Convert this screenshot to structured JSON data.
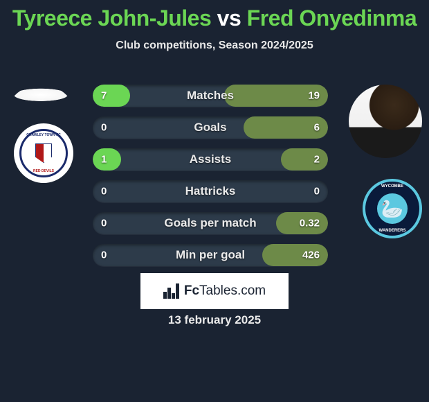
{
  "title": {
    "player1": "Tyreece John-Jules",
    "vs": "vs",
    "player2": "Fred Onyedinma",
    "color1": "#6bd654",
    "color2": "#6bd654",
    "vs_color": "#ffffff",
    "fontsize": 32
  },
  "subtitle": "Club competitions, Season 2024/2025",
  "player1_color": "#6bd654",
  "player2_color": "#6d8a48",
  "stats": [
    {
      "label": "Matches",
      "val1": "7",
      "val2": "19",
      "fill1_pct": 16,
      "fill2_pct": 44
    },
    {
      "label": "Goals",
      "val1": "0",
      "val2": "6",
      "fill1_pct": 0,
      "fill2_pct": 36
    },
    {
      "label": "Assists",
      "val1": "1",
      "val2": "2",
      "fill1_pct": 12,
      "fill2_pct": 20
    },
    {
      "label": "Hattricks",
      "val1": "0",
      "val2": "0",
      "fill1_pct": 0,
      "fill2_pct": 0
    },
    {
      "label": "Goals per match",
      "val1": "0",
      "val2": "0.32",
      "fill1_pct": 0,
      "fill2_pct": 22
    },
    {
      "label": "Min per goal",
      "val1": "0",
      "val2": "426",
      "fill1_pct": 0,
      "fill2_pct": 28
    }
  ],
  "branding": {
    "label_prefix": "Fc",
    "label_mid": "Tables",
    "label_suffix": ".com"
  },
  "date": "13 february 2025",
  "background_color": "#1a2332",
  "bar_bg": "#2d3b4a"
}
